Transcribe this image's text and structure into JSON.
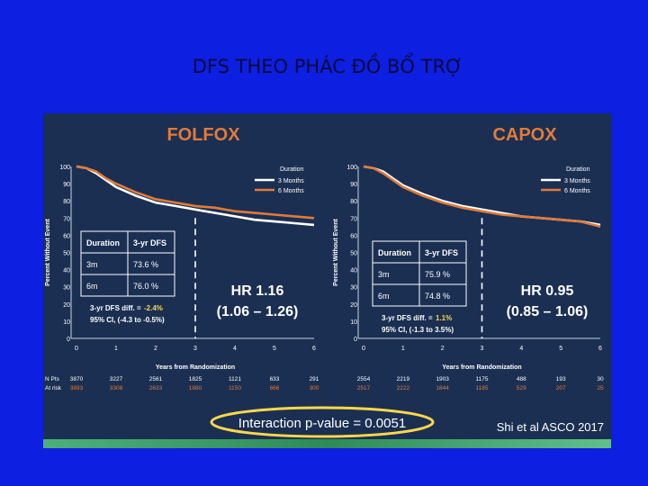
{
  "slide": {
    "title": "DFS THEO PHÁC ĐỒ BỔ TRỢ"
  },
  "footer": {
    "interaction": "Interaction p-value = 0.0051",
    "citation": "Shi et al ASCO 2017"
  },
  "colors": {
    "three_months": "#ffffff",
    "six_months": "#e07b3a",
    "accent_yellow": "#ffd84a",
    "panel": "#1b2f52"
  },
  "chart_data": [
    {
      "type": "line",
      "title": "FOLFOX",
      "ylabel": "Percent Without Event",
      "xlabel": "Years from Randomization",
      "xlim": [
        0,
        6
      ],
      "ylim": [
        0,
        100
      ],
      "xticks": [
        "0",
        "1",
        "2",
        "3",
        "4",
        "5",
        "6"
      ],
      "yticks": [
        "0",
        "10",
        "20",
        "30",
        "40",
        "50",
        "60",
        "70",
        "80",
        "90",
        "100"
      ],
      "legend_title": "Duration",
      "series": [
        {
          "name": "3 Months",
          "color": "#ffffff",
          "x": [
            0,
            0.25,
            0.5,
            0.75,
            1,
            1.5,
            2,
            2.5,
            3,
            3.5,
            4,
            4.5,
            5,
            5.5,
            6
          ],
          "y": [
            100,
            99,
            96,
            92,
            88,
            83,
            79,
            77,
            75,
            73,
            71,
            69,
            68,
            67,
            66
          ]
        },
        {
          "name": "6 Months",
          "color": "#e07b3a",
          "x": [
            0,
            0.25,
            0.5,
            0.75,
            1,
            1.5,
            2,
            2.5,
            3,
            3.5,
            4,
            4.5,
            5,
            5.5,
            6
          ],
          "y": [
            100,
            99,
            97,
            93,
            90,
            85,
            81,
            79,
            77,
            76,
            74,
            73,
            72,
            71,
            70
          ]
        }
      ],
      "table": {
        "headers": [
          "Duration",
          "3-yr DFS"
        ],
        "rows": [
          [
            "3m",
            "73.6 %"
          ],
          [
            "6m",
            "76.0 %"
          ]
        ]
      },
      "diff_label": "3-yr DFS diff. = ",
      "diff_value": "-2.4%",
      "ci": "95% CI, (-4.3 to -0.5%)",
      "hr": "HR 1.16",
      "hr_ci": "(1.06 – 1.26)",
      "risk_labels": [
        "N Pts",
        "At risk"
      ],
      "risk": [
        [
          "3870",
          "3227",
          "2561",
          "1825",
          "1121",
          "633",
          "291"
        ],
        [
          "3893",
          "3308",
          "2633",
          "1880",
          "1150",
          "666",
          "300"
        ]
      ]
    },
    {
      "type": "line",
      "title": "CAPOX",
      "ylabel": "Percent Without Event",
      "xlabel": "Years from Randomization",
      "xlim": [
        0,
        6
      ],
      "ylim": [
        0,
        100
      ],
      "xticks": [
        "0",
        "1",
        "2",
        "3",
        "4",
        "5",
        "6"
      ],
      "yticks": [
        "0",
        "10",
        "20",
        "30",
        "40",
        "50",
        "60",
        "70",
        "80",
        "90",
        "100"
      ],
      "legend_title": "Duration",
      "series": [
        {
          "name": "3 Months",
          "color": "#ffffff",
          "x": [
            0,
            0.25,
            0.5,
            0.75,
            1,
            1.5,
            2,
            2.5,
            3,
            3.5,
            4,
            4.5,
            5,
            5.5,
            6
          ],
          "y": [
            100,
            99,
            97,
            93,
            89,
            84,
            80,
            77,
            75,
            73,
            71,
            70,
            69,
            68,
            66
          ]
        },
        {
          "name": "6 Months",
          "color": "#e07b3a",
          "x": [
            0,
            0.25,
            0.5,
            0.75,
            1,
            1.5,
            2,
            2.5,
            3,
            3.5,
            4,
            4.5,
            5,
            5.5,
            6
          ],
          "y": [
            100,
            99,
            96,
            92,
            88,
            83,
            79,
            76,
            74,
            72,
            71,
            70,
            69,
            68,
            65
          ]
        }
      ],
      "table": {
        "headers": [
          "Duration",
          "3-yr DFS"
        ],
        "rows": [
          [
            "3m",
            "75.9 %"
          ],
          [
            "6m",
            "74.8 %"
          ]
        ]
      },
      "diff_label": "3-yr DFS diff. = ",
      "diff_value": "1.1%",
      "ci": "95% CI, (-1.3 to 3.5%)",
      "hr": "HR 0.95",
      "hr_ci": "(0.85 – 1.06)",
      "risk": [
        [
          "2554",
          "2219",
          "1903",
          "1175",
          "488",
          "193",
          "30"
        ],
        [
          "2517",
          "2222",
          "1844",
          "1185",
          "529",
          "207",
          "25"
        ]
      ]
    }
  ]
}
